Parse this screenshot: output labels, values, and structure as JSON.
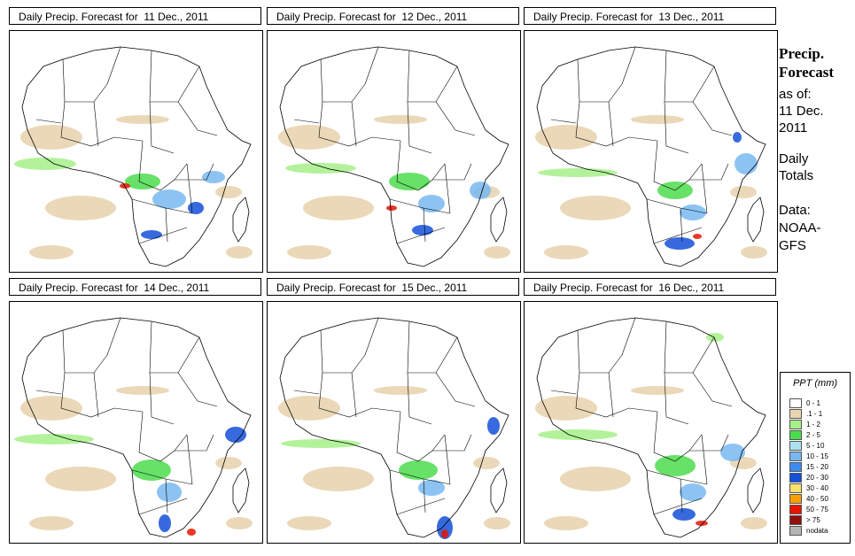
{
  "panels": [
    {
      "title": "Daily Precip. Forecast for  11 Dec., 2011"
    },
    {
      "title": "Daily Precip. Forecast for  12 Dec., 2011"
    },
    {
      "title": "Daily Precip. Forecast for  13 Dec., 2011"
    },
    {
      "title": "Daily Precip. Forecast for  14 Dec., 2011"
    },
    {
      "title": "Daily Precip. Forecast for  15 Dec., 2011"
    },
    {
      "title": "Daily Precip. Forecast for  16 Dec., 2011"
    }
  ],
  "side": {
    "heading_line1": "Precip.",
    "heading_line2": "Forecast",
    "asof_label": "as of:",
    "date_line1": "11 Dec.",
    "date_line2": "2011",
    "totals_line1": "Daily",
    "totals_line2": "Totals",
    "data_line1": "Data:",
    "data_line2": "NOAA-",
    "data_line3": "GFS"
  },
  "legend": {
    "title": "PPT (mm)",
    "items": [
      {
        "label": "0 - 1",
        "color": "#ffffff"
      },
      {
        "label": ".1 - 1",
        "color": "#e8d4b0"
      },
      {
        "label": "1 - 2",
        "color": "#a6f08a"
      },
      {
        "label": "2 - 5",
        "color": "#4cdc4c"
      },
      {
        "label": "5 - 10",
        "color": "#aee0f0"
      },
      {
        "label": "10 - 15",
        "color": "#78b8f0"
      },
      {
        "label": "15 - 20",
        "color": "#3c8cf0"
      },
      {
        "label": "20 - 30",
        "color": "#1450d8"
      },
      {
        "label": "30 - 40",
        "color": "#f8e070"
      },
      {
        "label": "40 - 50",
        "color": "#f8a000"
      },
      {
        "label": "50 - 75",
        "color": "#e81400"
      },
      {
        "label": "> 75",
        "color": "#901010"
      },
      {
        "label": "nodata",
        "color": "#b4b4b4"
      }
    ]
  },
  "colors": {
    "dry": "#e8d4b0",
    "light": "#a6f08a",
    "moderate": "#4cdc4c",
    "wet": "#78b8f0",
    "heavy": "#1450d8",
    "extreme": "#e81400"
  }
}
